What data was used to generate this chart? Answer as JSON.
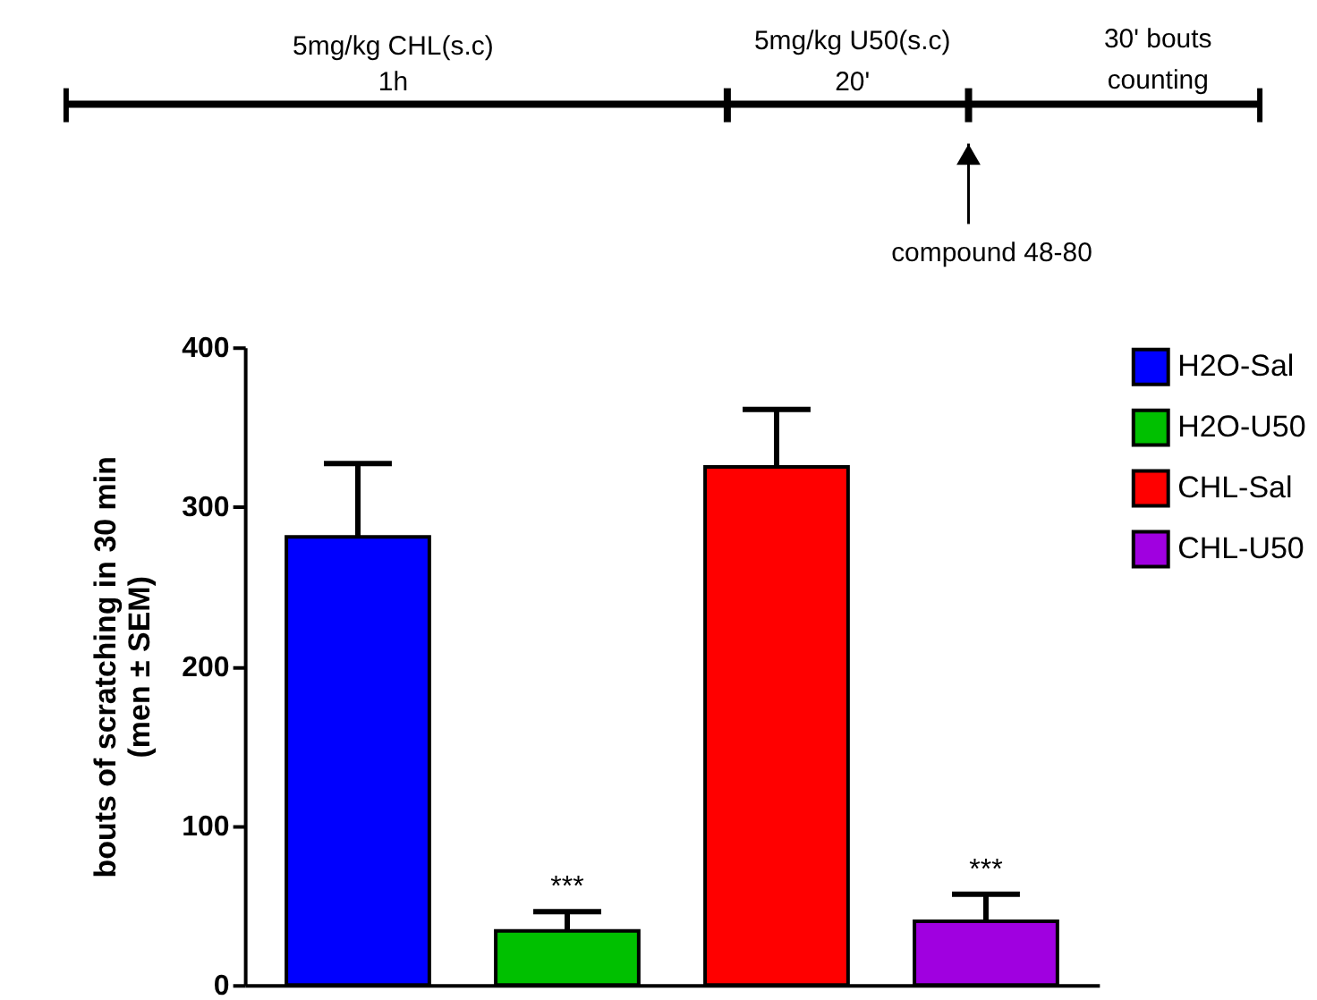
{
  "chart_data": {
    "type": "bar",
    "ylabel": "bouts of scratching in 30 min\n(men ± SEM)",
    "categories": [
      null,
      null,
      null,
      null
    ],
    "series": [
      {
        "name": "H2O-Sal",
        "color": "#0000ff",
        "values": [
          281,
          null,
          null,
          null
        ],
        "errors": [
          46,
          null,
          null,
          null
        ]
      },
      {
        "name": "H2O-U50",
        "color": "#00c000",
        "values": [
          null,
          34,
          null,
          null
        ],
        "errors": [
          null,
          12,
          null,
          null
        ]
      },
      {
        "name": "CHL-Sal",
        "color": "#ff0000",
        "values": [
          null,
          null,
          325,
          null
        ],
        "errors": [
          null,
          null,
          36,
          null
        ]
      },
      {
        "name": "CHL-U50",
        "color": "#a000e0",
        "values": [
          null,
          null,
          null,
          40
        ],
        "errors": [
          null,
          null,
          null,
          17
        ]
      }
    ],
    "ylim": [
      0,
      400
    ],
    "yticks": [
      0,
      100,
      200,
      300,
      400
    ],
    "legend": "right",
    "grid": false,
    "tick_labels": "y",
    "annotations": [
      "5mg/kg CHL(s.c)",
      "1h",
      "5mg/kg U50(s.c)",
      "20'",
      "30' bouts",
      "counting",
      "compound 48-80",
      {
        "text": "***",
        "y": 46
      },
      {
        "text": "***",
        "y": 57
      }
    ]
  }
}
